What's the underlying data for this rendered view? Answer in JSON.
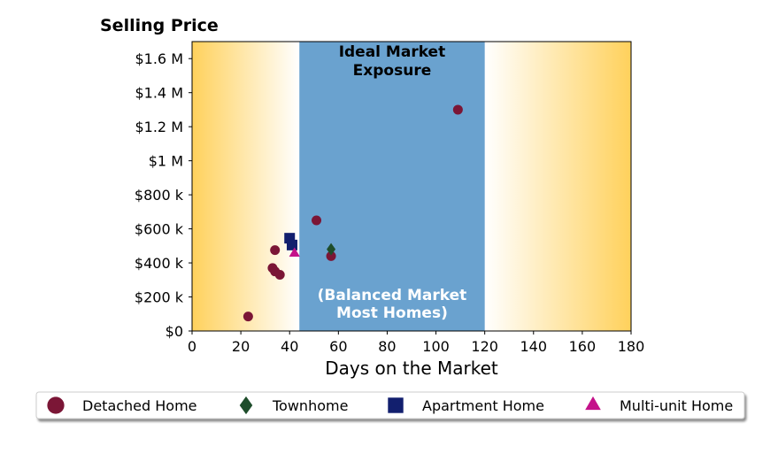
{
  "chart_data": {
    "type": "scatter",
    "title": "Selling Price",
    "xlabel": "Days on the Market",
    "ylabel": "",
    "xlim": [
      0,
      180
    ],
    "ylim": [
      0,
      1700000
    ],
    "x_ticks": [
      0,
      20,
      40,
      60,
      80,
      100,
      120,
      140,
      160,
      180
    ],
    "x_tick_labels": [
      "0",
      "20",
      "40",
      "60",
      "80",
      "100",
      "120",
      "140",
      "160",
      "180"
    ],
    "y_ticks": [
      0,
      200000,
      400000,
      600000,
      800000,
      1000000,
      1200000,
      1400000,
      1600000
    ],
    "y_tick_labels": [
      "$0",
      "$200 k",
      "$400 k",
      "$600 k",
      "$800 k",
      "$1 M",
      "$1.2 M",
      "$1.4 M",
      "$1.6 M"
    ],
    "grid": false,
    "background_gradient": {
      "edge_color": "#ffd15c",
      "center_color": "#ffffff"
    },
    "band": {
      "x_range": [
        44,
        120
      ],
      "color": "#6aa2cf",
      "top_label": [
        "Ideal Market",
        "Exposure"
      ],
      "top_label_color": "#000000",
      "bottom_label": [
        "(Balanced Market",
        "Most Homes)"
      ],
      "bottom_label_color": "#ffffff"
    },
    "series": [
      {
        "name": "Detached Home",
        "marker": "circle",
        "color": "#7b1636",
        "points": [
          [
            23,
            85000
          ],
          [
            33,
            370000
          ],
          [
            34,
            350000
          ],
          [
            34,
            475000
          ],
          [
            36,
            330000
          ],
          [
            51,
            650000
          ],
          [
            57,
            440000
          ],
          [
            109,
            1300000
          ]
        ]
      },
      {
        "name": "Townhome",
        "marker": "diamond",
        "color": "#1e4d2b",
        "points": [
          [
            57,
            480000
          ]
        ]
      },
      {
        "name": "Apartment Home",
        "marker": "square",
        "color": "#121f6e",
        "points": [
          [
            40,
            545000
          ],
          [
            41,
            505000
          ]
        ]
      },
      {
        "name": "Multi-unit Home",
        "marker": "triangle",
        "color": "#c4128a",
        "points": [
          [
            42,
            455000
          ]
        ]
      }
    ],
    "legend": {
      "position": "bottom",
      "columns": 4
    }
  }
}
